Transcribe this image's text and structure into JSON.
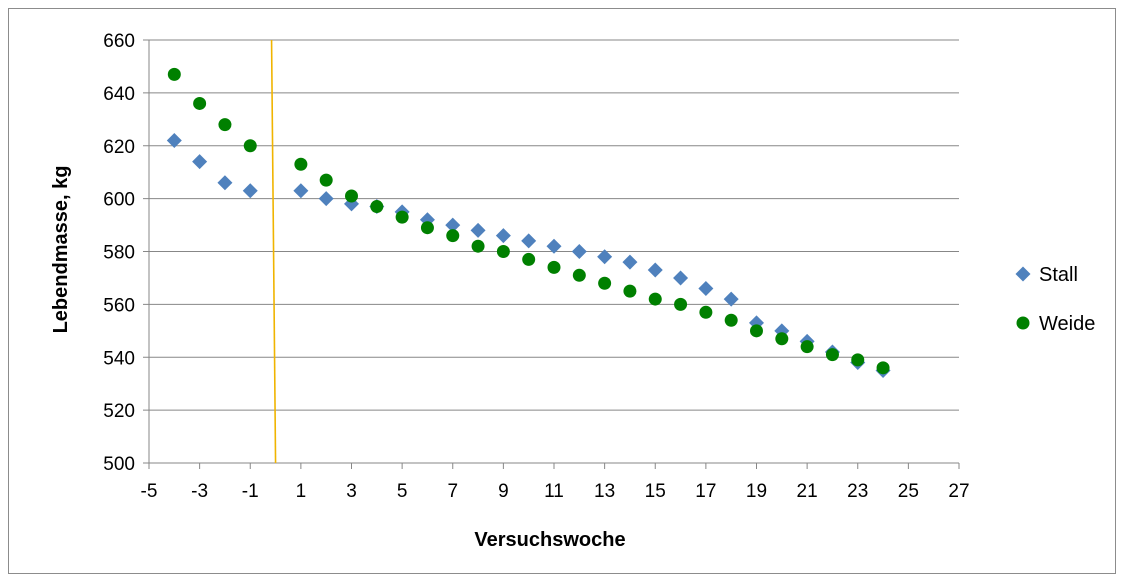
{
  "chart_data": {
    "type": "scatter",
    "title": "",
    "xlabel": "Versuchswoche",
    "ylabel": "Lebendmasse, kg",
    "xlim": [
      -5,
      27
    ],
    "ylim": [
      500,
      660
    ],
    "x_ticks": [
      -5,
      -3,
      -1,
      1,
      3,
      5,
      7,
      9,
      11,
      13,
      15,
      17,
      19,
      21,
      23,
      25,
      27
    ],
    "y_ticks": [
      500,
      520,
      540,
      560,
      580,
      600,
      620,
      640,
      660
    ],
    "grid": "horizontal",
    "legend_position": "right",
    "vertical_line": {
      "x": 0,
      "color": "#F0B400"
    },
    "series": [
      {
        "name": "Stall",
        "marker": "diamond",
        "color": "#4F81BD",
        "points": [
          [
            -4,
            622
          ],
          [
            -3,
            614
          ],
          [
            -2,
            606
          ],
          [
            -1,
            603
          ],
          [
            1,
            603
          ],
          [
            2,
            600
          ],
          [
            3,
            598
          ],
          [
            4,
            597
          ],
          [
            5,
            595
          ],
          [
            6,
            592
          ],
          [
            7,
            590
          ],
          [
            8,
            588
          ],
          [
            9,
            586
          ],
          [
            10,
            584
          ],
          [
            11,
            582
          ],
          [
            12,
            580
          ],
          [
            13,
            578
          ],
          [
            14,
            576
          ],
          [
            15,
            573
          ],
          [
            16,
            570
          ],
          [
            17,
            566
          ],
          [
            18,
            562
          ],
          [
            19,
            553
          ],
          [
            20,
            550
          ],
          [
            21,
            546
          ],
          [
            22,
            542
          ],
          [
            23,
            538
          ],
          [
            24,
            535
          ]
        ]
      },
      {
        "name": "Weide",
        "marker": "circle",
        "color": "#008000",
        "points": [
          [
            -4,
            647
          ],
          [
            -3,
            636
          ],
          [
            -2,
            628
          ],
          [
            -1,
            620
          ],
          [
            1,
            613
          ],
          [
            2,
            607
          ],
          [
            3,
            601
          ],
          [
            4,
            597
          ],
          [
            5,
            593
          ],
          [
            6,
            589
          ],
          [
            7,
            586
          ],
          [
            8,
            582
          ],
          [
            9,
            580
          ],
          [
            10,
            577
          ],
          [
            11,
            574
          ],
          [
            12,
            571
          ],
          [
            13,
            568
          ],
          [
            14,
            565
          ],
          [
            15,
            562
          ],
          [
            16,
            560
          ],
          [
            17,
            557
          ],
          [
            18,
            554
          ],
          [
            19,
            550
          ],
          [
            20,
            547
          ],
          [
            21,
            544
          ],
          [
            22,
            541
          ],
          [
            23,
            539
          ],
          [
            24,
            536
          ]
        ]
      }
    ]
  }
}
